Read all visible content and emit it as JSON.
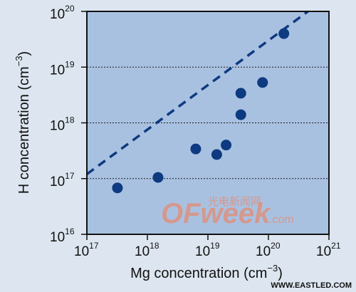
{
  "chart_data": {
    "type": "scatter",
    "xscale": "log",
    "yscale": "log",
    "xlim": [
      1e+17,
      1e+21
    ],
    "ylim": [
      1e+16,
      1e+20
    ],
    "xlabel": "Mg concentration (cm",
    "xlabel_sup": "−3",
    "xlabel_end": ")",
    "ylabel": "H concentration (cm",
    "ylabel_sup": "−3",
    "ylabel_end": ")",
    "x_ticks": [
      {
        "value": 1e+17,
        "base": "10",
        "exp": "17"
      },
      {
        "value": 1e+18,
        "base": "10",
        "exp": "18"
      },
      {
        "value": 1e+19,
        "base": "10",
        "exp": "19"
      },
      {
        "value": 1e+20,
        "base": "10",
        "exp": "20"
      },
      {
        "value": 1e+21,
        "base": "10",
        "exp": "21"
      }
    ],
    "y_ticks": [
      {
        "value": 1e+16,
        "base": "10",
        "exp": "16"
      },
      {
        "value": 1e+17,
        "base": "10",
        "exp": "17"
      },
      {
        "value": 1e+18,
        "base": "10",
        "exp": "18"
      },
      {
        "value": 1e+19,
        "base": "10",
        "exp": "19"
      },
      {
        "value": 1e+20,
        "base": "10",
        "exp": "20"
      }
    ],
    "grid": "horizontal dashed at decades",
    "points": [
      {
        "x": 3.2e+17,
        "y": 6.8e+16
      },
      {
        "x": 1.5e+18,
        "y": 1.05e+17
      },
      {
        "x": 6.3e+18,
        "y": 3.4e+17
      },
      {
        "x": 1.4e+19,
        "y": 2.7e+17
      },
      {
        "x": 2e+19,
        "y": 4e+17
      },
      {
        "x": 3.5e+19,
        "y": 1.4e+18
      },
      {
        "x": 3.5e+19,
        "y": 3.4e+18
      },
      {
        "x": 8e+19,
        "y": 5.3e+18
      },
      {
        "x": 1.8e+20,
        "y": 4e+19
      }
    ],
    "trend_line": {
      "style": "dashed",
      "x": [
        1e+17,
        4.5e+20
      ],
      "y": [
        1.2e+17,
        1e+20
      ]
    },
    "colors": {
      "plot_background": "#a9c1e1",
      "page_background": "#dde6f0",
      "marker": "#0d3a80",
      "trend_line": "#0d3a80",
      "grid": "#1a1a1a"
    }
  },
  "watermark": {
    "chinese": "光电新闻网",
    "logo": "OFweek",
    "suffix": ".com",
    "site": "WWW.EASTLED.COM"
  }
}
